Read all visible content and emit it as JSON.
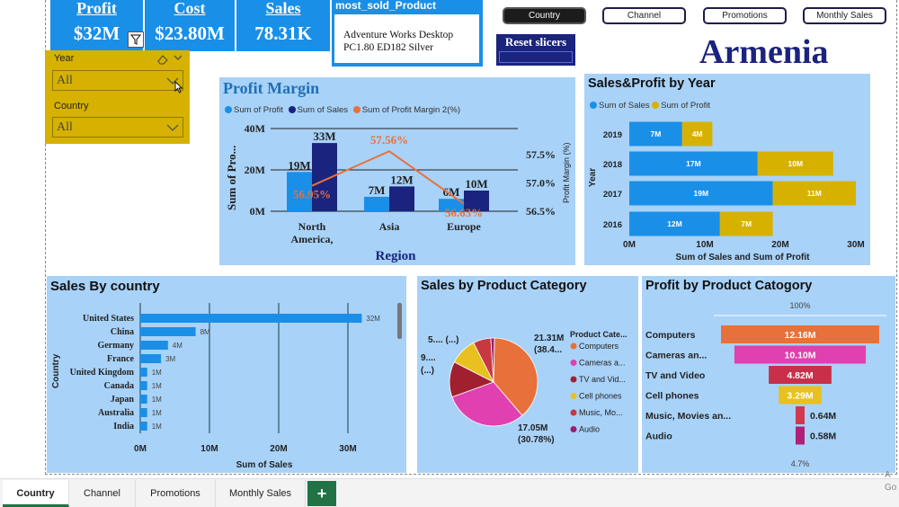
{
  "kpis": [
    {
      "title": "Profit",
      "value": "$32M"
    },
    {
      "title": "Cost",
      "value": "$23.80M"
    },
    {
      "title": "Sales",
      "value": "78.31K"
    }
  ],
  "most_sold": {
    "title": "most_sold_Product",
    "line1": "Adventure Works Desktop",
    "line2": "PC1.80 ED182 Silver"
  },
  "reset_label": "Reset slicers",
  "nav_buttons": [
    "Country",
    "Channel",
    "Promotions",
    "Monthly Sales"
  ],
  "country_title": "Armenia",
  "slicers": {
    "year_label": "Year",
    "year_value": "All",
    "country_label": "Country",
    "country_value": "All"
  },
  "colors": {
    "kpi": "#1a8fe8",
    "panel": "#a8d2f8",
    "slicer": "#d7b100",
    "dark_blue": "#1a237e",
    "orange": "#e8703a"
  },
  "profit_margin": {
    "title": "Profit Margin",
    "legend": [
      "Sum of Profit",
      "Sum of Sales",
      "Sum of Profit Margin 2(%)"
    ],
    "y_left_ticks": [
      "40M",
      "20M",
      "0M"
    ],
    "y_right_ticks": [
      "57.5%",
      "57.0%",
      "56.5%"
    ],
    "ylabel": "Sum of Pro...",
    "y2label": "Profit Margin (%)",
    "xlabel": "Region",
    "categories": [
      "North America,",
      "Asia",
      "Europe"
    ],
    "cat_line1": [
      "North",
      "Asia",
      "Europe"
    ],
    "cat_line2": [
      "America,",
      "",
      ""
    ],
    "profit_labels": [
      "19M",
      "7M",
      "6M"
    ],
    "sales_labels": [
      "33M",
      "12M",
      "10M"
    ],
    "margin_labels": [
      "56.95%",
      "57.56%",
      "56.63%"
    ]
  },
  "sales_profit_year": {
    "title": "Sales&Profit by Year",
    "legend": [
      "Sum of Sales",
      "Sum of Profit"
    ],
    "years": [
      "2019",
      "2018",
      "2017",
      "2016"
    ],
    "sales_labels": [
      "7M",
      "17M",
      "19M",
      "12M"
    ],
    "profit_labels": [
      "4M",
      "10M",
      "11M",
      "7M"
    ],
    "x_ticks": [
      "0M",
      "10M",
      "20M",
      "30M"
    ],
    "xlabel": "Sum of Sales and Sum of Profit",
    "ylabel": "Year"
  },
  "sales_by_country": {
    "title": "Sales By country",
    "countries": [
      "United States",
      "China",
      "Germany",
      "France",
      "United Kingdom",
      "Canada",
      "Japan",
      "Australia",
      "India"
    ],
    "labels": [
      "32M",
      "8M",
      "4M",
      "3M",
      "1M",
      "1M",
      "1M",
      "1M",
      "1M"
    ],
    "x_ticks": [
      "0M",
      "10M",
      "20M",
      "30M"
    ],
    "xlabel": "Sum of Sales",
    "ylabel": "Country"
  },
  "sales_by_category": {
    "title": "Sales by Product Category",
    "legend_title": "Product Cate...",
    "legend": [
      "Computers",
      "Cameras a...",
      "TV and Vid...",
      "Cell phones",
      "Music, Mo...",
      "Audio"
    ],
    "label_top_right_1": "21.31M",
    "label_top_right_2": "(38.4...",
    "label_bottom_1": "17.05M",
    "label_bottom_2": "(30.78%)",
    "label_left_1": "5.... (...)",
    "label_left_2": "9....",
    "label_left_3": "(...)"
  },
  "profit_by_category": {
    "title": "Profit by Product Catogory",
    "top_pct": "100%",
    "bottom_pct": "4.7%",
    "categories": [
      "Computers",
      "Cameras an...",
      "TV and Video",
      "Cell phones",
      "Music, Movies an...",
      "Audio"
    ],
    "labels": [
      "12.16M",
      "10.10M",
      "4.82M",
      "3.29M",
      "0.64M",
      "0.58M"
    ]
  },
  "tabs": [
    "Country",
    "Channel",
    "Promotions",
    "Monthly Sales"
  ],
  "add_tab": "+",
  "corner_text": {
    "line1": "A",
    "line2": "Go"
  },
  "chart_data": [
    {
      "type": "bar",
      "title": "Profit Margin",
      "categories": [
        "North America",
        "Asia",
        "Europe"
      ],
      "series": [
        {
          "name": "Sum of Profit",
          "values": [
            19,
            7,
            6
          ]
        },
        {
          "name": "Sum of Sales",
          "values": [
            33,
            12,
            10
          ]
        },
        {
          "name": "Sum of Profit Margin 2(%)",
          "values": [
            56.95,
            57.56,
            56.63
          ]
        }
      ],
      "xlabel": "Region",
      "ylabel": "Sum of Profit (M)",
      "ylim": [
        0,
        40
      ],
      "y2lim": [
        56.5,
        57.75
      ]
    },
    {
      "type": "bar",
      "title": "Sales&Profit by Year",
      "categories": [
        "2019",
        "2018",
        "2017",
        "2016"
      ],
      "series": [
        {
          "name": "Sum of Sales",
          "values": [
            7,
            17,
            19,
            12
          ]
        },
        {
          "name": "Sum of Profit",
          "values": [
            4,
            10,
            11,
            7
          ]
        }
      ],
      "xlabel": "Sum of Sales and Sum of Profit",
      "ylabel": "Year",
      "xlim": [
        0,
        30
      ]
    },
    {
      "type": "bar",
      "title": "Sales By country",
      "categories": [
        "United States",
        "China",
        "Germany",
        "France",
        "United Kingdom",
        "Canada",
        "Japan",
        "Australia",
        "India"
      ],
      "values": [
        32,
        8,
        4,
        3,
        1,
        1,
        1,
        1,
        1
      ],
      "xlabel": "Sum of Sales",
      "ylabel": "Country",
      "xlim": [
        0,
        35
      ]
    },
    {
      "type": "pie",
      "title": "Sales by Product Category",
      "categories": [
        "Computers",
        "Cameras and camcorders",
        "TV and Video",
        "Cell phones",
        "Music, Movies and Audio Books",
        "Audio"
      ],
      "values": [
        38.4,
        30.78,
        13,
        10,
        6.5,
        1.32
      ]
    },
    {
      "type": "bar",
      "title": "Profit by Product Catogory",
      "categories": [
        "Computers",
        "Cameras and camcorders",
        "TV and Video",
        "Cell phones",
        "Music, Movies and Audio Books",
        "Audio"
      ],
      "values": [
        12.16,
        10.1,
        4.82,
        3.29,
        0.64,
        0.58
      ]
    }
  ]
}
